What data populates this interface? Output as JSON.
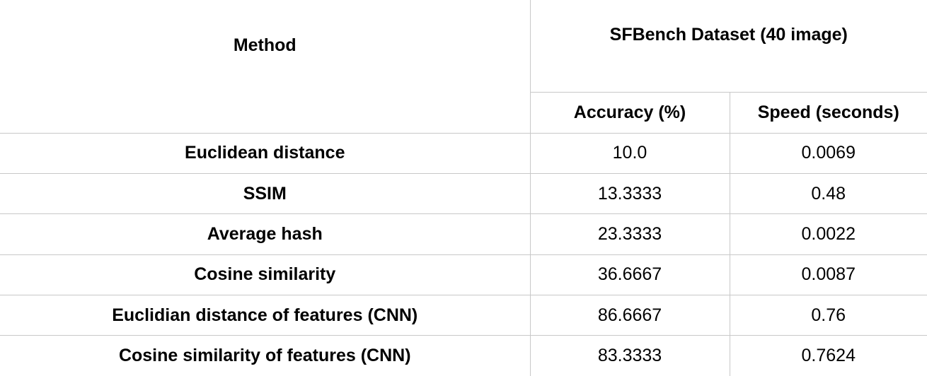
{
  "table": {
    "headers": {
      "method": "Method",
      "dataset": "SFBench Dataset (40 image)",
      "accuracy": "Accuracy (%)",
      "speed": "Speed (seconds)"
    },
    "rows": [
      {
        "method": "Euclidean distance",
        "accuracy": "10.0",
        "speed": "0.0069"
      },
      {
        "method": "SSIM",
        "accuracy": "13.3333",
        "speed": "0.48"
      },
      {
        "method": "Average hash",
        "accuracy": "23.3333",
        "speed": "0.0022"
      },
      {
        "method": "Cosine similarity",
        "accuracy": "36.6667",
        "speed": "0.0087"
      },
      {
        "method": "Euclidian distance of features (CNN)",
        "accuracy": "86.6667",
        "speed": "0.76"
      },
      {
        "method": "Cosine similarity of features (CNN)",
        "accuracy": "83.3333",
        "speed": "0.7624"
      }
    ]
  }
}
